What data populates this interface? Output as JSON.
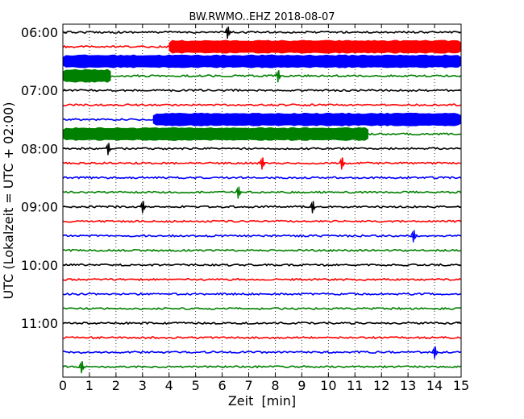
{
  "chart_data": {
    "type": "line",
    "title": "BW.RWMO..EHZ 2018-08-07",
    "xlabel": "Zeit  [min]",
    "ylabel": "UTC (Lokalzeit = UTC + 02:00)",
    "xlim": [
      0,
      15
    ],
    "x_ticks": [
      0,
      1,
      2,
      3,
      4,
      5,
      6,
      7,
      8,
      9,
      10,
      11,
      12,
      13,
      14,
      15
    ],
    "y_tick_labels": [
      "06:00",
      "07:00",
      "08:00",
      "09:00",
      "10:00",
      "11:00"
    ],
    "grid": "x-dotted",
    "trace_colors": [
      "#000000",
      "#ff0000",
      "#0000ff",
      "#008000"
    ],
    "traces": [
      {
        "start": "06:00",
        "color": "#000000",
        "loud": []
      },
      {
        "start": "06:15",
        "color": "#ff0000",
        "loud": [
          [
            4.0,
            15.0
          ]
        ]
      },
      {
        "start": "06:30",
        "color": "#0000ff",
        "loud": [
          [
            0.0,
            15.0
          ]
        ]
      },
      {
        "start": "06:45",
        "color": "#008000",
        "loud": [
          [
            0.0,
            1.8
          ]
        ]
      },
      {
        "start": "07:00",
        "color": "#000000",
        "loud": []
      },
      {
        "start": "07:15",
        "color": "#ff0000",
        "loud": []
      },
      {
        "start": "07:30",
        "color": "#0000ff",
        "loud": [
          [
            3.4,
            15.0
          ]
        ]
      },
      {
        "start": "07:45",
        "color": "#008000",
        "loud": [
          [
            0.0,
            11.5
          ]
        ]
      },
      {
        "start": "08:00",
        "color": "#000000",
        "loud": []
      },
      {
        "start": "08:15",
        "color": "#ff0000",
        "loud": []
      },
      {
        "start": "08:30",
        "color": "#0000ff",
        "loud": []
      },
      {
        "start": "08:45",
        "color": "#008000",
        "loud": []
      },
      {
        "start": "09:00",
        "color": "#000000",
        "loud": []
      },
      {
        "start": "09:15",
        "color": "#ff0000",
        "loud": []
      },
      {
        "start": "09:30",
        "color": "#0000ff",
        "loud": []
      },
      {
        "start": "09:45",
        "color": "#008000",
        "loud": []
      },
      {
        "start": "10:00",
        "color": "#000000",
        "loud": []
      },
      {
        "start": "10:15",
        "color": "#ff0000",
        "loud": []
      },
      {
        "start": "10:30",
        "color": "#0000ff",
        "loud": []
      },
      {
        "start": "10:45",
        "color": "#008000",
        "loud": []
      },
      {
        "start": "11:00",
        "color": "#000000",
        "loud": []
      },
      {
        "start": "11:15",
        "color": "#ff0000",
        "loud": []
      },
      {
        "start": "11:30",
        "color": "#0000ff",
        "loud": []
      },
      {
        "start": "11:45",
        "color": "#008000",
        "loud": []
      }
    ],
    "spikes": [
      {
        "trace": "06:00",
        "x": 6.2
      },
      {
        "trace": "06:45",
        "x": 8.1
      },
      {
        "trace": "07:45",
        "x": 8.8
      },
      {
        "trace": "08:00",
        "x": 1.7
      },
      {
        "trace": "08:15",
        "x": 7.5
      },
      {
        "trace": "08:15",
        "x": 10.5
      },
      {
        "trace": "08:45",
        "x": 6.6
      },
      {
        "trace": "09:00",
        "x": 3.0
      },
      {
        "trace": "09:00",
        "x": 9.4
      },
      {
        "trace": "09:30",
        "x": 13.2
      },
      {
        "trace": "11:30",
        "x": 14.0
      },
      {
        "trace": "11:45",
        "x": 0.7
      }
    ]
  }
}
